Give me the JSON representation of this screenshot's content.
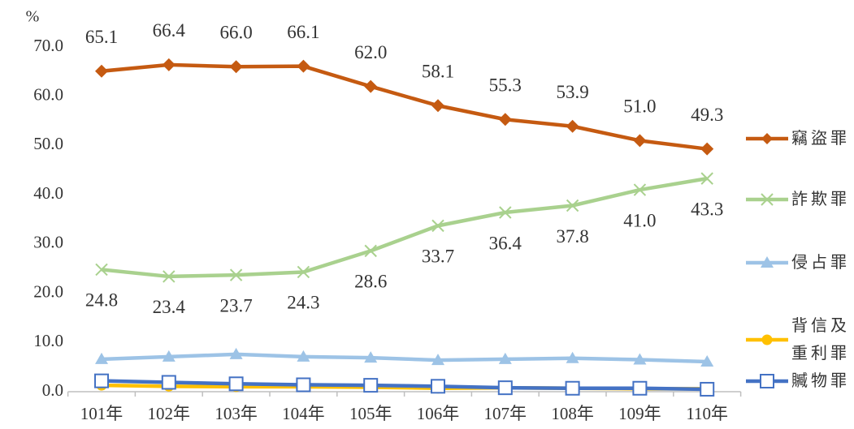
{
  "chart_data": {
    "type": "line",
    "y_label": "%",
    "categories": [
      "101年",
      "102年",
      "103年",
      "104年",
      "105年",
      "106年",
      "107年",
      "108年",
      "109年",
      "110年"
    ],
    "ylim": [
      0,
      70
    ],
    "yticks": [
      {
        "value": 0,
        "label": "0.0"
      },
      {
        "value": 10,
        "label": "10.0"
      },
      {
        "value": 20,
        "label": "20.0"
      },
      {
        "value": 30,
        "label": "30.0"
      },
      {
        "value": 40,
        "label": "40.0"
      },
      {
        "value": 50,
        "label": "50.0"
      },
      {
        "value": 60,
        "label": "60.0"
      },
      {
        "value": 70,
        "label": "70.0"
      }
    ],
    "legend": "right",
    "series": [
      {
        "name": "竊盜罪",
        "color": "#c55a11",
        "marker": "diamond",
        "values": [
          65.1,
          66.4,
          66.0,
          66.1,
          62.0,
          58.1,
          55.3,
          53.9,
          51.0,
          49.3
        ],
        "value_labels": [
          "65.1",
          "66.4",
          "66.0",
          "66.1",
          "62.0",
          "58.1",
          "55.3",
          "53.9",
          "51.0",
          "49.3"
        ]
      },
      {
        "name": "詐欺罪",
        "color": "#a9d18e",
        "marker": "x",
        "values": [
          24.8,
          23.4,
          23.7,
          24.3,
          28.6,
          33.7,
          36.4,
          37.8,
          41.0,
          43.3
        ],
        "value_labels": [
          "24.8",
          "23.4",
          "23.7",
          "24.3",
          "28.6",
          "33.7",
          "36.4",
          "37.8",
          "41.0",
          "43.3"
        ]
      },
      {
        "name": "侵占罪",
        "color": "#9dc3e6",
        "marker": "triangle",
        "values": [
          6.6,
          7.1,
          7.6,
          7.1,
          6.9,
          6.4,
          6.6,
          6.8,
          6.5,
          6.1
        ]
      },
      {
        "name": "背信及重利罪",
        "color": "#ffc000",
        "marker": "circle",
        "values": [
          1.3,
          1.1,
          1.0,
          1.0,
          0.9,
          0.7,
          0.8,
          0.7,
          0.6,
          0.6
        ]
      },
      {
        "name": "贓物罪",
        "color": "#4472c4",
        "marker": "square",
        "values": [
          2.2,
          1.9,
          1.6,
          1.4,
          1.3,
          1.1,
          0.8,
          0.7,
          0.7,
          0.5
        ]
      }
    ]
  }
}
